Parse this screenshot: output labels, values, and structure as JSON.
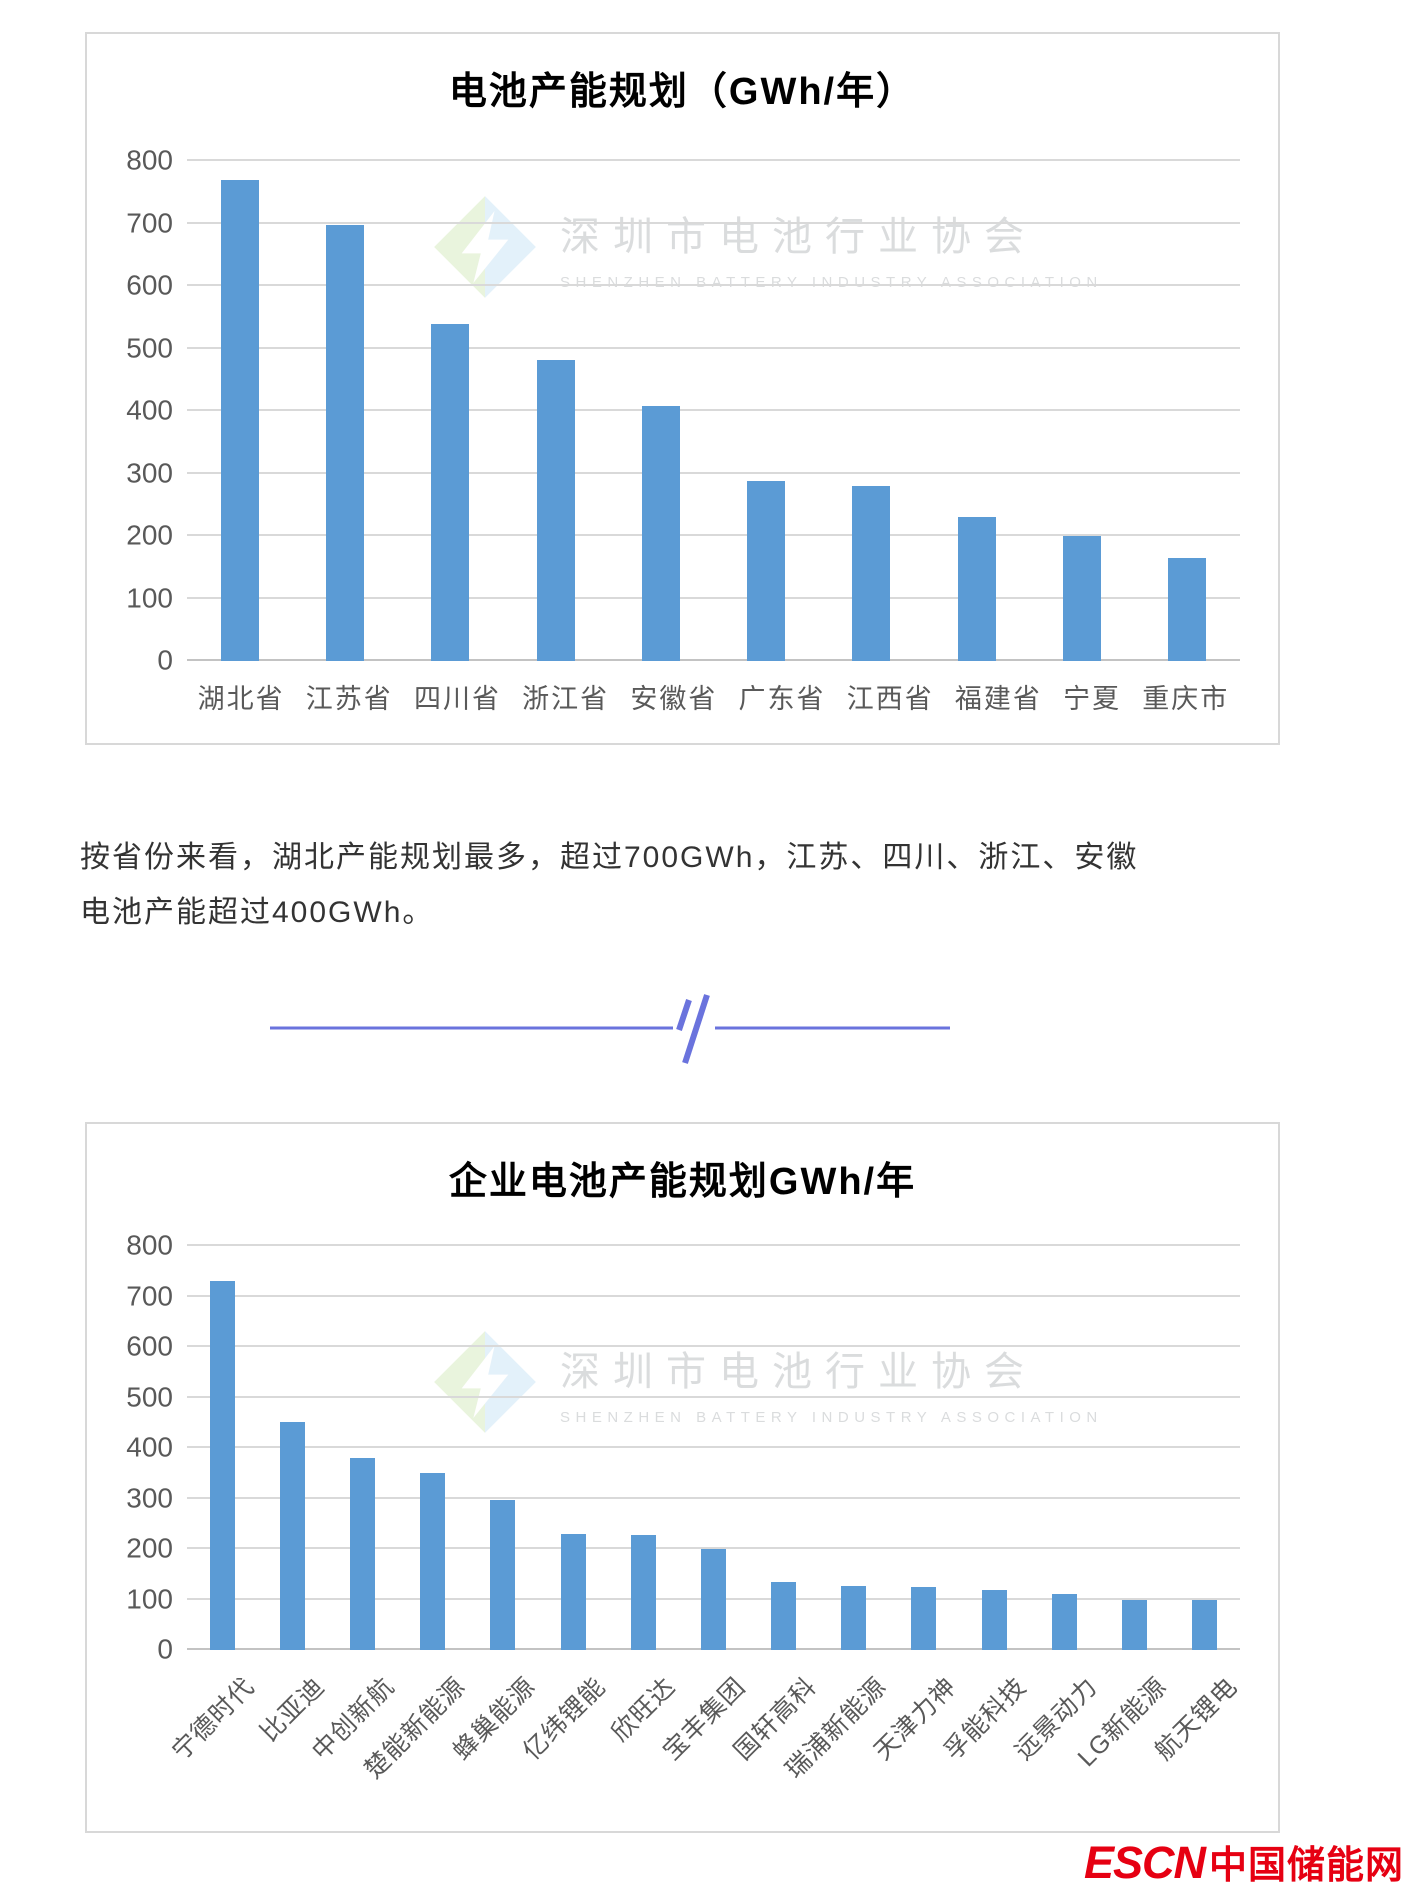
{
  "colors": {
    "bar": "#5b9bd5",
    "divider": "#6a73dd",
    "escn_red": "#e60012",
    "grid": "#d9d9d9",
    "tick_text": "#595959",
    "watermark_text": "#c2c5c8"
  },
  "watermark": {
    "cn": "深圳市电池行业协会",
    "en": "SHENZHEN BATTERY INDUSTRY ASSOCIATION"
  },
  "chart_data": [
    {
      "type": "bar",
      "title": "电池产能规划（GWh/年）",
      "categories": [
        "湖北省",
        "江苏省",
        "四川省",
        "浙江省",
        "安徽省",
        "广东省",
        "江西省",
        "福建省",
        "宁夏",
        "重庆市"
      ],
      "values": [
        770,
        697,
        540,
        482,
        408,
        288,
        280,
        230,
        200,
        165
      ],
      "xlabel": "",
      "ylabel": "",
      "ylim": [
        0,
        800
      ],
      "y_ticks": [
        800,
        700,
        600,
        500,
        400,
        300,
        200,
        100,
        0
      ],
      "grid": true,
      "legend": "none",
      "bar_color": "#5b9bd5"
    },
    {
      "type": "bar",
      "title": "企业电池产能规划GWh/年",
      "categories": [
        "宁德时代",
        "比亚迪",
        "中创新航",
        "楚能新能源",
        "蜂巢能源",
        "亿纬锂能",
        "欣旺达",
        "宝丰集团",
        "国轩高科",
        "瑞浦新能源",
        "天津力神",
        "孚能科技",
        "远景动力",
        "LG新能源",
        "航天锂电"
      ],
      "values": [
        730,
        452,
        380,
        350,
        297,
        230,
        228,
        200,
        135,
        127,
        124,
        118,
        110,
        100,
        100
      ],
      "xlabel": "",
      "ylabel": "",
      "ylim": [
        0,
        800
      ],
      "y_ticks": [
        800,
        700,
        600,
        500,
        400,
        300,
        200,
        100,
        0
      ],
      "grid": true,
      "legend": "none",
      "bar_color": "#5b9bd5",
      "x_label_rotation": -45
    }
  ],
  "paragraph": {
    "text": "按省份来看，湖北产能规划最多，超过700GWh，江苏、四川、浙江、安徽电池产能超过400GWh。"
  },
  "footer": {
    "escn": "ESCN",
    "site_name": "中国储能网"
  }
}
